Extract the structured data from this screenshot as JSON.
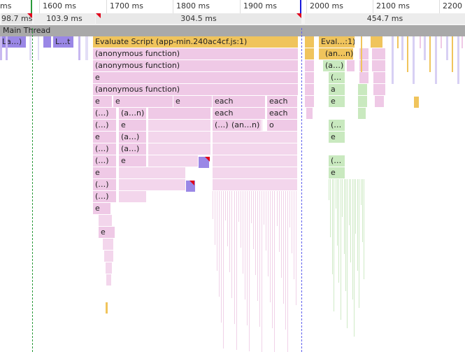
{
  "ruler": {
    "ticks": [
      "ms",
      "1600 ms",
      "1700 ms",
      "1800 ms",
      "1900 ms",
      "2000 ms",
      "2100 ms",
      "2200"
    ]
  },
  "tasks": {
    "durations": [
      "98.7 ms",
      "103.9 ms",
      "304.5 ms",
      "454.7 ms"
    ]
  },
  "main_thread": {
    "label": "Main Thread"
  },
  "flame": {
    "labels": {
      "la": "La…)",
      "lt": "L…t",
      "evaluate": "Evaluate Script (app-min.240ac4cf.js:1)",
      "eval_short": "Eval…:1)",
      "anon": "(anonymous function)",
      "an_n": "(an…n)",
      "a_dots": "(a…)",
      "e": "e",
      "each": "each",
      "ellipsis": "(…)",
      "a_n": "(a…n)",
      "o": "o",
      "paren_open": "(…",
      "a": "a"
    }
  },
  "colors": {
    "scripting": "#efc9e6",
    "evaluate": "#f0c45c",
    "task": "#9a87e6",
    "gc": "#c9e9bf",
    "thread_header": "#a9a9a9",
    "long_task_flag": "#e0001a",
    "dcl_marker": "#2a9a3a",
    "load_marker": "#1a1adb"
  }
}
